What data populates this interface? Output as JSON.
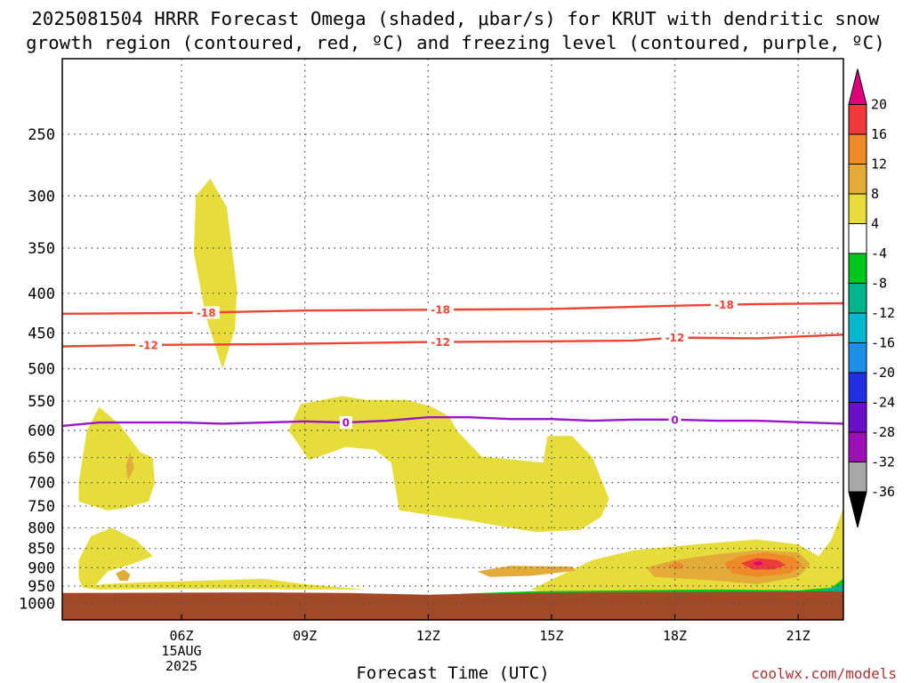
{
  "title": {
    "line1": "2025081504 HRRR Forecast Omega (shaded, μbar/s) for KRUT with dendritic snow",
    "line2": "growth region (contoured, red, ºC) and freezing level (contoured, purple, ºC)"
  },
  "xlabel": "Forecast Time (UTC)",
  "credit": "coolwx.com/models",
  "chart_data": {
    "type": "heatmap",
    "title": "2025081504 HRRR Forecast Omega (shaded, μbar/s) for KRUT with dendritic snow growth region (contoured, red, ºC) and freezing level (contoured, purple, ºC)",
    "xlabel": "Forecast Time (UTC)",
    "ylabel": "",
    "x_unit": "hours UTC",
    "x_range": [
      3.1,
      22.1
    ],
    "x_ticks": [
      {
        "value": 6,
        "label": "06Z",
        "sub": [
          "15AUG",
          "2025"
        ]
      },
      {
        "value": 9,
        "label": "09Z"
      },
      {
        "value": 12,
        "label": "12Z"
      },
      {
        "value": 15,
        "label": "15Z"
      },
      {
        "value": 18,
        "label": "18Z"
      },
      {
        "value": 21,
        "label": "21Z"
      }
    ],
    "y_unit": "hPa",
    "y_scale": "log",
    "y_range": [
      1050,
      200
    ],
    "y_ticks": [
      250,
      300,
      350,
      400,
      450,
      500,
      550,
      600,
      650,
      700,
      750,
      800,
      850,
      900,
      950,
      1000
    ],
    "grid": true,
    "colorbar": {
      "unit": "μbar/s",
      "levels": [
        "20",
        "16",
        "12",
        "8",
        "4",
        "-4",
        "-8",
        "-12",
        "-16",
        "-20",
        "-24",
        "-28",
        "-32",
        "-36"
      ],
      "colors": [
        "#e0007a",
        "#ee3a3a",
        "#ee8a2a",
        "#e3ac38",
        "#e6dc3a",
        "#ffffff",
        "#00c81a",
        "#00b48c",
        "#00b8cc",
        "#1f8ee8",
        "#2030e0",
        "#6a10c8",
        "#9d10b8",
        "#a8a8a8",
        "#000000"
      ]
    },
    "contours": [
      {
        "name": "-18",
        "color": "#ee4434",
        "points": [
          [
            3.1,
            425
          ],
          [
            6,
            424
          ],
          [
            9,
            421
          ],
          [
            12,
            420
          ],
          [
            15,
            419
          ],
          [
            18,
            415
          ],
          [
            20,
            413
          ],
          [
            22.1,
            412
          ]
        ],
        "labels": [
          6.6,
          12.3,
          19.2
        ]
      },
      {
        "name": "-12",
        "color": "#ee4434",
        "points": [
          [
            3.1,
            468
          ],
          [
            5,
            466
          ],
          [
            8,
            465
          ],
          [
            12,
            462
          ],
          [
            15,
            461
          ],
          [
            17,
            460
          ],
          [
            18,
            456
          ],
          [
            20,
            457
          ],
          [
            22.1,
            452
          ]
        ],
        "labels": [
          5.2,
          12.3,
          18
        ]
      },
      {
        "name": "0",
        "color": "#9a14c8",
        "points": [
          [
            3.1,
            592
          ],
          [
            4,
            586
          ],
          [
            6,
            586
          ],
          [
            7,
            588
          ],
          [
            9,
            584
          ],
          [
            10,
            586
          ],
          [
            11,
            583
          ],
          [
            12,
            577
          ],
          [
            13,
            577
          ],
          [
            14,
            580
          ],
          [
            15,
            580
          ],
          [
            16,
            583
          ],
          [
            17,
            581
          ],
          [
            18,
            581
          ],
          [
            19,
            583
          ],
          [
            20,
            583
          ],
          [
            22.1,
            588
          ]
        ],
        "labels": [
          10,
          18
        ]
      }
    ],
    "omega_shaded": [
      {
        "level": "4 to 8",
        "color": "#e6dc3a",
        "polygon": [
          [
            6.3,
            355
          ],
          [
            6.35,
            300
          ],
          [
            6.7,
            285
          ],
          [
            7.1,
            310
          ],
          [
            7.35,
            395
          ],
          [
            7.3,
            445
          ],
          [
            7.0,
            500
          ],
          [
            6.6,
            430
          ]
        ]
      },
      {
        "level": "4 to 8",
        "color": "#e6dc3a",
        "polygon": [
          [
            3.5,
            740
          ],
          [
            3.5,
            700
          ],
          [
            3.7,
            600
          ],
          [
            4.0,
            560
          ],
          [
            4.5,
            590
          ],
          [
            5.0,
            640
          ],
          [
            5.3,
            650
          ],
          [
            5.35,
            700
          ],
          [
            5.2,
            740
          ],
          [
            4.6,
            755
          ],
          [
            4.2,
            760
          ]
        ]
      },
      {
        "level": "4 to 8",
        "color": "#e6dc3a",
        "polygon": [
          [
            3.5,
            880
          ],
          [
            3.8,
            820
          ],
          [
            4.3,
            800
          ],
          [
            4.9,
            830
          ],
          [
            5.3,
            870
          ],
          [
            4.8,
            890
          ],
          [
            4.2,
            910
          ],
          [
            3.9,
            950
          ],
          [
            3.6,
            955
          ],
          [
            3.5,
            930
          ]
        ]
      },
      {
        "level": "4 to 8",
        "color": "#e6dc3a",
        "polygon": [
          [
            3.6,
            955
          ],
          [
            4.1,
            945
          ],
          [
            5.0,
            940
          ],
          [
            6.5,
            935
          ],
          [
            8.0,
            930
          ],
          [
            9.0,
            945
          ],
          [
            10.5,
            960
          ],
          [
            9.0,
            960
          ],
          [
            7.0,
            958
          ],
          [
            5.5,
            958
          ],
          [
            4.0,
            960
          ]
        ]
      },
      {
        "level": "4 to 8",
        "color": "#e6dc3a",
        "polygon": [
          [
            8.6,
            600
          ],
          [
            8.9,
            555
          ],
          [
            9.9,
            542
          ],
          [
            10.5,
            548
          ],
          [
            11.5,
            548
          ],
          [
            12.1,
            560
          ],
          [
            12.5,
            575
          ],
          [
            12.7,
            600
          ],
          [
            13.3,
            648
          ],
          [
            14.8,
            660
          ],
          [
            14.9,
            610
          ],
          [
            15.5,
            610
          ],
          [
            16.0,
            650
          ],
          [
            16.4,
            735
          ],
          [
            16.2,
            775
          ],
          [
            15.7,
            805
          ],
          [
            14.6,
            810
          ],
          [
            12.8,
            780
          ],
          [
            11.3,
            760
          ],
          [
            11.1,
            660
          ],
          [
            10.7,
            635
          ],
          [
            10.0,
            630
          ],
          [
            9.1,
            655
          ],
          [
            8.8,
            620
          ]
        ]
      },
      {
        "level": "4 to 8",
        "color": "#e6dc3a",
        "polygon": [
          [
            14.5,
            960
          ],
          [
            16.0,
            880
          ],
          [
            17.0,
            855
          ],
          [
            18.5,
            840
          ],
          [
            20.0,
            828
          ],
          [
            21.0,
            840
          ],
          [
            21.5,
            870
          ],
          [
            21.8,
            830
          ],
          [
            22.1,
            755
          ],
          [
            22.1,
            955
          ],
          [
            21.5,
            960
          ],
          [
            19.0,
            965
          ],
          [
            16.5,
            968
          ],
          [
            15.0,
            970
          ]
        ]
      },
      {
        "level": "8 to 12",
        "color": "#e3ac38",
        "polygon": [
          [
            13.2,
            910
          ],
          [
            14.0,
            895
          ],
          [
            15.5,
            897
          ],
          [
            15.6,
            908
          ],
          [
            14.5,
            922
          ],
          [
            13.5,
            925
          ]
        ]
      },
      {
        "level": "8 to 12",
        "color": "#e3ac38",
        "polygon": [
          [
            17.3,
            900
          ],
          [
            18.0,
            880
          ],
          [
            19.0,
            865
          ],
          [
            20.0,
            855
          ],
          [
            21.0,
            860
          ],
          [
            21.3,
            890
          ],
          [
            21.0,
            925
          ],
          [
            20.0,
            945
          ],
          [
            19.0,
            935
          ],
          [
            17.5,
            925
          ]
        ]
      },
      {
        "level": "8 to 12",
        "color": "#e3ac38",
        "polygon": [
          [
            4.4,
            915
          ],
          [
            4.6,
            905
          ],
          [
            4.75,
            918
          ],
          [
            4.7,
            935
          ],
          [
            4.5,
            935
          ]
        ]
      },
      {
        "level": "8 to 12",
        "color": "#e3ac38",
        "polygon": [
          [
            4.65,
            665
          ],
          [
            4.75,
            640
          ],
          [
            4.85,
            670
          ],
          [
            4.7,
            695
          ]
        ]
      },
      {
        "level": "12 to 16",
        "color": "#ee8a2a",
        "polygon": [
          [
            19.2,
            888
          ],
          [
            19.6,
            870
          ],
          [
            20.2,
            860
          ],
          [
            20.9,
            872
          ],
          [
            21.1,
            895
          ],
          [
            20.8,
            915
          ],
          [
            20.0,
            925
          ],
          [
            19.4,
            915
          ]
        ]
      },
      {
        "level": "12 to 16",
        "color": "#ee8a2a",
        "polygon": [
          [
            17.8,
            895
          ],
          [
            18.1,
            885
          ],
          [
            18.25,
            895
          ],
          [
            18.1,
            905
          ]
        ]
      },
      {
        "level": "16 to 20",
        "color": "#ee3a3a",
        "polygon": [
          [
            19.6,
            888
          ],
          [
            20.0,
            875
          ],
          [
            20.5,
            880
          ],
          [
            20.7,
            893
          ],
          [
            20.4,
            905
          ],
          [
            19.9,
            905
          ]
        ]
      },
      {
        "level": ">20",
        "color": "#e0007a",
        "polygon": [
          [
            19.9,
            888
          ],
          [
            20.05,
            882
          ],
          [
            20.15,
            890
          ],
          [
            20.0,
            895
          ]
        ]
      },
      {
        "level": "-4 to -8",
        "color": "#00c81a",
        "polygon": [
          [
            12.8,
            972
          ],
          [
            14.5,
            965
          ],
          [
            17.0,
            962
          ],
          [
            19.0,
            960
          ],
          [
            21.0,
            962
          ],
          [
            21.8,
            955
          ],
          [
            22.1,
            930
          ],
          [
            22.1,
            975
          ],
          [
            12.8,
            975
          ]
        ]
      },
      {
        "level": "-8 to -12",
        "color": "#00b48c",
        "polygon": [
          [
            17.5,
            968
          ],
          [
            19.5,
            966
          ],
          [
            21.5,
            965
          ],
          [
            22.1,
            945
          ],
          [
            22.1,
            975
          ],
          [
            17.5,
            975
          ]
        ]
      },
      {
        "level": "-12 to -16",
        "color": "#00b8cc",
        "polygon": [
          [
            21.6,
            972
          ],
          [
            22.0,
            962
          ],
          [
            22.1,
            962
          ],
          [
            22.1,
            975
          ]
        ]
      }
    ],
    "terrain": {
      "color": "#a24a28",
      "top_hPa": [
        [
          3.1,
          970
        ],
        [
          8.0,
          968
        ],
        [
          10.0,
          970
        ],
        [
          12.0,
          975
        ],
        [
          13.0,
          972
        ],
        [
          16.0,
          968
        ],
        [
          22.1,
          965
        ]
      ],
      "bottom_hPa": 1050
    }
  }
}
